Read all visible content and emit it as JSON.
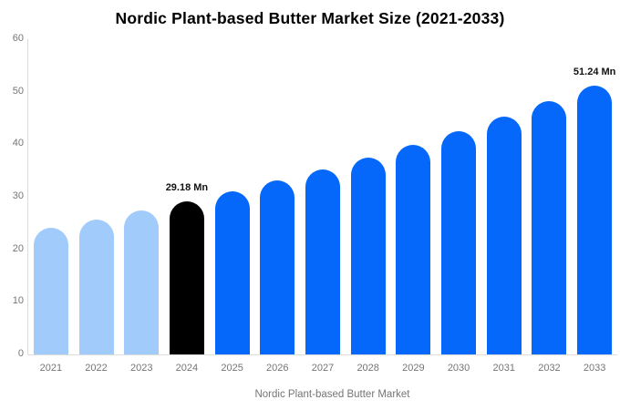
{
  "chart_data": {
    "type": "bar",
    "title": "Nordic Plant-based Butter Market Size (2021-2033)",
    "categories": [
      "2021",
      "2022",
      "2023",
      "2024",
      "2025",
      "2026",
      "2027",
      "2028",
      "2029",
      "2030",
      "2031",
      "2032",
      "2033"
    ],
    "values": [
      24.18,
      25.74,
      27.41,
      29.18,
      31.06,
      33.07,
      35.21,
      37.48,
      39.91,
      42.49,
      45.23,
      48.16,
      51.24
    ],
    "bar_roles": [
      "historical",
      "historical",
      "historical",
      "current",
      "forecast",
      "forecast",
      "forecast",
      "forecast",
      "forecast",
      "forecast",
      "forecast",
      "forecast",
      "forecast"
    ],
    "point_labels": [
      "",
      "",
      "",
      "29.18 Mn",
      "",
      "",
      "",
      "",
      "",
      "",
      "",
      "",
      "51.24 Mn"
    ],
    "colors": {
      "historical": "#A1CBFB",
      "current": "#000000",
      "forecast": "#0568FB",
      "axis_line": "#DCDCDC",
      "tick_text": "#757575",
      "label_text": "#111111"
    },
    "xlabel": "",
    "ylabel": "",
    "ylim": [
      0,
      60
    ],
    "yticks": [
      0,
      10,
      20,
      30,
      40,
      50,
      60
    ],
    "grid": false,
    "unit": "Mn",
    "legend": {
      "position": "bottom",
      "items": [
        {
          "label": "Nordic Plant-based Butter Market",
          "swatch_color": "#A1CBFB"
        }
      ]
    }
  }
}
